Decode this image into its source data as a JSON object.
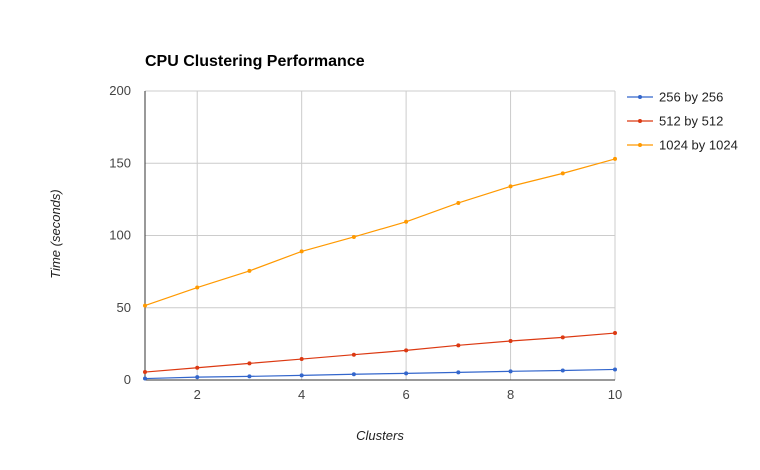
{
  "chart_data": {
    "type": "line",
    "title": "CPU Clustering Performance",
    "xlabel": "Clusters",
    "ylabel": "Time (seconds)",
    "x": [
      1,
      2,
      3,
      4,
      5,
      6,
      7,
      8,
      9,
      10
    ],
    "xlim": [
      1,
      10
    ],
    "ylim": [
      0,
      200
    ],
    "xticks": [
      2,
      4,
      6,
      8,
      10
    ],
    "yticks": [
      0,
      50,
      100,
      150,
      200
    ],
    "grid": true,
    "legend_position": "right",
    "series": [
      {
        "name": "256 by 256",
        "color": "#3366cc",
        "values": [
          1,
          2,
          2.5,
          3.2,
          4,
          4.6,
          5.3,
          6,
          6.6,
          7.3
        ]
      },
      {
        "name": "512 by 512",
        "color": "#dc3912",
        "values": [
          5.5,
          8.5,
          11.5,
          14.5,
          17.5,
          20.5,
          24,
          27,
          29.5,
          32.5
        ]
      },
      {
        "name": "1024 by 1024",
        "color": "#ff9900",
        "values": [
          51.5,
          64,
          75.5,
          89,
          99,
          109.5,
          122.5,
          134,
          143,
          153
        ]
      }
    ]
  }
}
